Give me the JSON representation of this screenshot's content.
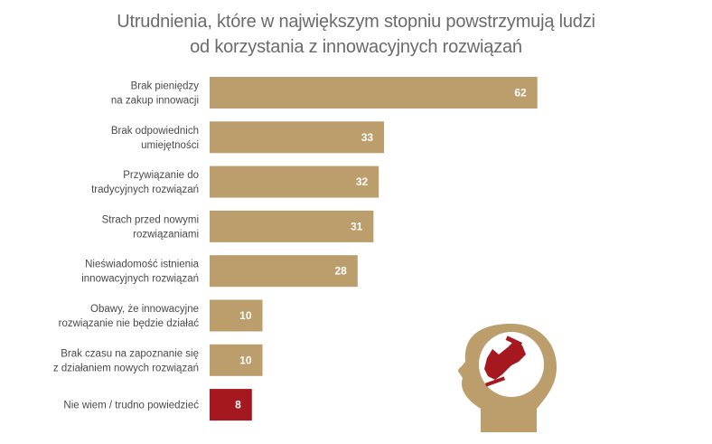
{
  "chart_data": {
    "type": "bar",
    "orientation": "horizontal",
    "title": [
      "Utrudnienia, które w największym stopniu powstrzymują ludzi",
      "od korzystania z innowacyjnych rozwiązań"
    ],
    "categories": [
      [
        "Brak pieniędzy",
        "na zakup innowacji"
      ],
      [
        "Brak odpowiednich",
        "umiejętności"
      ],
      [
        "Przywiązanie do",
        "tradycyjnych rozwiązań"
      ],
      [
        "Strach przed nowymi",
        "rozwiązaniami"
      ],
      [
        "Nieświadomość istnienia",
        "innowacyjnych rozwiązań"
      ],
      [
        "Obawy, że innowacyjne",
        "rozwiązanie nie będzie działać"
      ],
      [
        "Brak czasu na zapoznanie się",
        "z działaniem nowych rozwiązań"
      ],
      [
        "Nie wiem / trudno powiedzieć"
      ]
    ],
    "values": [
      62,
      33,
      32,
      31,
      28,
      10,
      10,
      8
    ],
    "highlight_index": 7,
    "colors": {
      "bar": "#bb9e6b",
      "highlight": "#a5181f",
      "title": "#6b6b6b",
      "icon": "#bb9e6b"
    },
    "grid": false,
    "legend": "none"
  },
  "decoration": {
    "icon": "head-with-foot-brake-icon"
  }
}
